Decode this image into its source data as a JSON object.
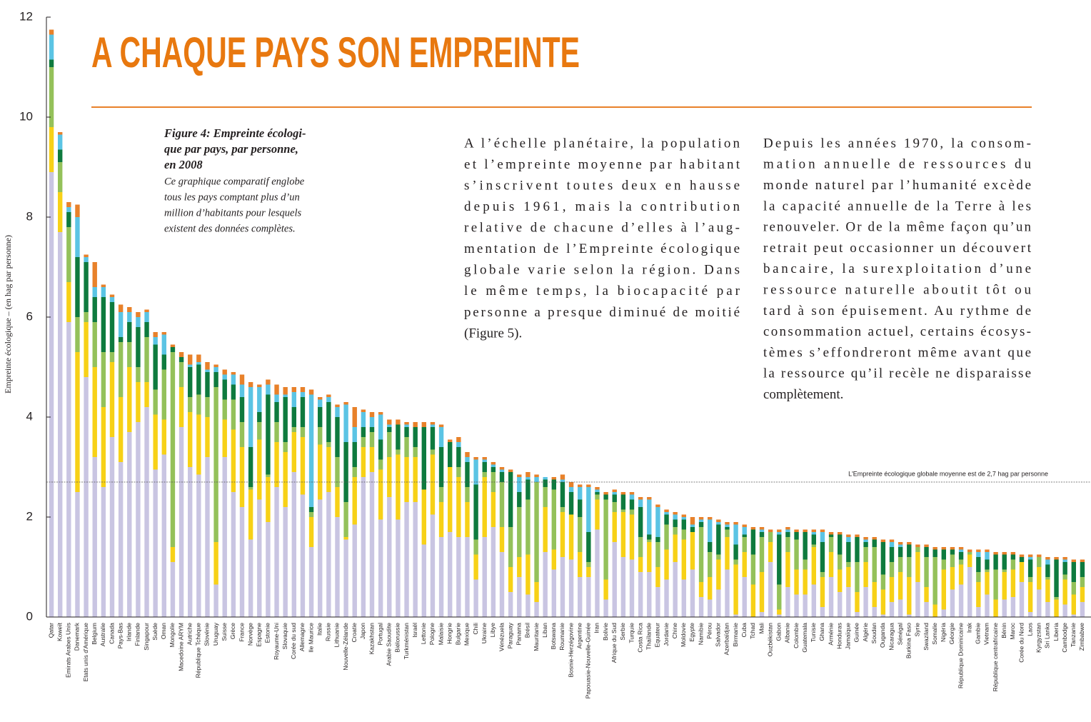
{
  "chart_data": {
    "type": "bar",
    "stacked": true,
    "title": "A CHAQUE PAYS SON EMPREINTE",
    "ylabel": "Empreinte écologique – (en hag par personne)",
    "ylim": [
      0,
      12
    ],
    "yticks": [
      0,
      2,
      4,
      6,
      8,
      10,
      12
    ],
    "grid": false,
    "reference_line": {
      "value": 2.7,
      "label": "L'Empreinte écologique globale moyenne est de 2,7 hag par personne"
    },
    "figure_title_lines": [
      "Figure 4: Empreinte écologi-",
      "que par pays, par personne,",
      "en 2008"
    ],
    "figure_text_lines": [
      "Ce graphique comparatif englobe",
      "tous les pays comptant plus d’un",
      "million d’habitants pour lesquels",
      "existent des données complètes."
    ],
    "paragraphs": [
      [
        "A l’échelle planétaire, la population",
        "et l’empreinte moyenne par habitant",
        "s’inscrivent toutes deux en hausse",
        "depuis 1961, mais la contribution",
        "relative de chacune d’elles à l’aug-",
        "mentation de l’Empreinte écologique",
        "globale varie selon la région. Dans",
        "le même temps, la biocapacité par",
        "personne a presque diminué de moitié",
        "(Figure 5)."
      ],
      [
        "Depuis les années 1970, la consom-",
        "mation annuelle de ressources du",
        "monde naturel par l’humanité excède",
        "la capacité annuelle de la Terre à les",
        "renouveler. Or de la même façon qu’un",
        "retrait peut occasionner un découvert",
        "bancaire, la surexploitation d’une",
        "ressource naturelle aboutit tôt ou",
        "tard à son épuisement. Au rythme de",
        "consommation actuel, certains écosys-",
        "tèmes s’effondreront même avant que",
        "la ressource qu’il recèle ne disparaisse",
        "complètement."
      ]
    ],
    "categories": [
      "Qatar",
      "Koweït",
      "Emirats Arabes Unis",
      "Danemark",
      "Etats unis d'Amérique",
      "Belgium",
      "Australie",
      "Canada",
      "Pays-Bas",
      "Irlande",
      "Finlande",
      "Singapour",
      "Suède",
      "Oman",
      "Mongolie",
      "Macedoine ARYM",
      "Autriche",
      "République Tchèque",
      "Slovénie",
      "Uruguay",
      "Suisse",
      "Grèce",
      "France",
      "Norvège",
      "Espagne",
      "Estonie",
      "Royaume-Uni",
      "Slovaquie",
      "Corée du sud",
      "Allemagne",
      "Ile Maurice",
      "Italie",
      "Russie",
      "Lithuanie",
      "Nouvelle-Zélande",
      "Croatie",
      "Japon",
      "Kazakhstan",
      "Portugal",
      "Arabie Saoudite",
      "Biélorussie",
      "Turkménistan",
      "Israël",
      "Lettonie",
      "Pologne",
      "Malaisie",
      "Hongrie",
      "Bulgarie",
      "Mexique",
      "Chili",
      "Ukraine",
      "Libye",
      "Vénézuela",
      "Paraguay",
      "Panama",
      "Brésil",
      "Mauritanie",
      "Liban",
      "Botswana",
      "Roumanie",
      "Bosnie-Herzégovine",
      "Argentine",
      "Papouasie-Nouvelle-Guinée",
      "Iran",
      "Bolivie",
      "Afrique du Sud",
      "Serbie",
      "Turquie",
      "Costa Rica",
      "Thaïlande",
      "Equateur",
      "Jordanie",
      "Chine",
      "Moldovie",
      "Egypte",
      "Namibie",
      "Pérou",
      "Salvador",
      "Azerbaïdjan",
      "Birmanie",
      "Cuba",
      "Tchad",
      "Mali",
      "Ouzbékistan",
      "Gabon",
      "Albanie",
      "Colombie",
      "Guatemala",
      "Tunisie",
      "Ghana",
      "Arménie",
      "Honduras",
      "Jamaïque",
      "Guinée",
      "Algérie",
      "Soudan",
      "Ouganda",
      "Nicaragua",
      "Sénégal",
      "Burkina Faso",
      "Syrie",
      "Swaziland",
      "Somalie",
      "Nigéria",
      "Géorgie",
      "République Dominicaine",
      "Irak",
      "Gambie",
      "Vietnam",
      "République centrafricaine",
      "Bénin",
      "Maroc",
      "Corée du Nord",
      "Laos",
      "Kyrgyzstan",
      "Sri Lanka",
      "Liberia",
      "Cambodge",
      "Tanzanie",
      "Zimbabwe"
    ],
    "series": [
      {
        "color": "#c9c5e2",
        "values": [
          8.9,
          7.7,
          5.9,
          2.5,
          4.8,
          3.2,
          2.6,
          3.6,
          3.1,
          3.7,
          3.9,
          4.2,
          2.95,
          3.25,
          1.1,
          3.8,
          3.0,
          2.85,
          3.2,
          0.65,
          3.2,
          2.5,
          2.2,
          1.55,
          2.35,
          1.9,
          2.6,
          2.2,
          2.9,
          2.45,
          1.4,
          2.35,
          2.5,
          2.0,
          1.55,
          1.85,
          2.8,
          2.9,
          1.95,
          2.4,
          1.95,
          2.3,
          2.3,
          1.45,
          2.05,
          1.6,
          1.7,
          1.6,
          1.6,
          0.75,
          1.6,
          1.8,
          1.3,
          0.5,
          0.8,
          0.45,
          0.3,
          1.3,
          0.95,
          1.2,
          1.15,
          0.8,
          0.8,
          1.75,
          0.35,
          1.5,
          1.2,
          1.15,
          0.9,
          0.9,
          0.6,
          0.75,
          1.1,
          0.75,
          0.95,
          0.4,
          0.35,
          0.55,
          0.95,
          0.05,
          0.8,
          0,
          0.1,
          1.1,
          0.05,
          0.6,
          0.45,
          0.45,
          0.65,
          0.2,
          0.8,
          0.5,
          0.6,
          0.1,
          0.6,
          0.2,
          0.05,
          0.3,
          0.35,
          0.05,
          0.7,
          0.3,
          0,
          0.15,
          0.55,
          0.65,
          1.0,
          0.2,
          0.45,
          0,
          0.35,
          0.4,
          0.7,
          0.1,
          0.55,
          0.3,
          0,
          0.25,
          0.05,
          0.3
        ]
      },
      {
        "color": "#f7d117",
        "values": [
          0.9,
          0.8,
          0.8,
          2.8,
          1.1,
          1.8,
          1.6,
          1.5,
          1.3,
          1.3,
          0.8,
          0.5,
          1.1,
          0.7,
          0.3,
          0.8,
          1.1,
          1.2,
          0.8,
          0.85,
          0.75,
          1.25,
          1.2,
          1.0,
          1.2,
          0.9,
          0.9,
          1.1,
          0.8,
          1.15,
          0.6,
          1.1,
          0.9,
          0.6,
          0.05,
          0.95,
          0.6,
          0.5,
          1.0,
          0.8,
          1.3,
          0.9,
          0.9,
          1.1,
          1.2,
          0.7,
          1.3,
          1.2,
          0.7,
          0.5,
          1.2,
          0.7,
          0.5,
          0.5,
          0.4,
          0.8,
          0.4,
          0.9,
          0.4,
          0.9,
          0.9,
          0.5,
          0.2,
          0.6,
          0.4,
          0.6,
          0.9,
          0.9,
          0.3,
          0.6,
          0.4,
          0.6,
          0.55,
          0.8,
          0.75,
          0.3,
          0.45,
          0.6,
          0.65,
          1.0,
          0.5,
          0.65,
          0.8,
          0.4,
          0.1,
          0.7,
          0.5,
          0.5,
          0.75,
          0.6,
          0.5,
          0.45,
          0.4,
          0.4,
          0.5,
          0.5,
          0.5,
          0.5,
          0.55,
          0.75,
          0.6,
          0.3,
          0.25,
          0.8,
          0.45,
          0.4,
          0.25,
          0.5,
          0.45,
          0.35,
          0.55,
          0.55,
          0.4,
          0.6,
          0.45,
          0.45,
          0.35,
          0.5,
          0.4,
          0.3
        ]
      },
      {
        "color": "#94c15a",
        "values": [
          1.2,
          0.6,
          1.1,
          0.7,
          0.2,
          0.9,
          1.1,
          0.2,
          1.1,
          0.5,
          0.3,
          0.9,
          0.5,
          1.0,
          3.9,
          0.5,
          0.3,
          0.4,
          0.4,
          3.1,
          0.4,
          0.6,
          0.5,
          0.05,
          0.35,
          0.05,
          0.4,
          0.2,
          0.1,
          0.2,
          0.1,
          0.35,
          0.1,
          0.6,
          0.7,
          0.2,
          0.2,
          0.3,
          0.2,
          0.5,
          0.1,
          0.4,
          0.2,
          0,
          0.1,
          0.3,
          0,
          0.2,
          0.3,
          0.3,
          0.1,
          0.4,
          0.9,
          0.8,
          1.0,
          1.1,
          2.0,
          0.4,
          1.2,
          0.1,
          0,
          0.7,
          0.1,
          0.1,
          1.6,
          0.2,
          0.05,
          0.1,
          0.4,
          0.05,
          0.5,
          0.5,
          0.15,
          0.2,
          0,
          1.1,
          0.5,
          0.1,
          0.15,
          0.1,
          0.3,
          0.6,
          0.7,
          0.2,
          0.5,
          0.3,
          0.6,
          0.2,
          0.05,
          0.1,
          0.3,
          0.3,
          0.1,
          0.6,
          0.3,
          0.7,
          0.3,
          0.3,
          0.3,
          0.4,
          0.1,
          0.6,
          0.95,
          0.2,
          0.25,
          0.1,
          0.05,
          0.2,
          0.05,
          0.6,
          0.05,
          0.2,
          0,
          0.1,
          0.2,
          0.05,
          0.05,
          0.1,
          0.25,
          0.2
        ]
      },
      {
        "color": "#0e7a3e",
        "values": [
          0.15,
          0.25,
          0.3,
          1.2,
          1.0,
          0.5,
          1.1,
          1.0,
          0.1,
          0.4,
          0.8,
          0.3,
          0.9,
          0.3,
          0.1,
          0.1,
          0.6,
          0.6,
          0.5,
          0.3,
          0.4,
          0.3,
          0.5,
          0.8,
          0.2,
          1.6,
          0.4,
          0.9,
          0.4,
          0.6,
          0.1,
          0.4,
          0.8,
          0.8,
          1.2,
          0.5,
          0.2,
          0.1,
          0.4,
          0.1,
          0.5,
          0.2,
          0.4,
          1.25,
          0.45,
          0.8,
          0.5,
          0.4,
          0.5,
          1.1,
          0.2,
          0.1,
          0.2,
          1.1,
          0.3,
          0.4,
          0,
          0.15,
          0.2,
          0.5,
          0.45,
          0.35,
          0.6,
          0.05,
          0.1,
          0.15,
          0.3,
          0.2,
          0.6,
          0.1,
          0.1,
          0.2,
          0.15,
          0.2,
          0.1,
          0.1,
          0.2,
          0.6,
          0.05,
          0.3,
          0.05,
          0.5,
          0.1,
          0,
          1.0,
          0.1,
          0.15,
          0.55,
          0.2,
          0.6,
          0.05,
          0.4,
          0.4,
          0.5,
          0.1,
          0.15,
          0.65,
          0.3,
          0.2,
          0.25,
          0,
          0.2,
          0.15,
          0.2,
          0.1,
          0.15,
          0,
          0.3,
          0.2,
          0.3,
          0.3,
          0.1,
          0.1,
          0.35,
          0,
          0.25,
          0.75,
          0.25,
          0.4,
          0.3
        ]
      },
      {
        "color": "#5bc4e4",
        "values": [
          0.5,
          0.3,
          0.1,
          0.8,
          0.1,
          0.2,
          0.2,
          0.1,
          0.5,
          0.2,
          0.2,
          0.2,
          0.15,
          0.4,
          0,
          0,
          0.05,
          0.05,
          0.05,
          0.1,
          0.1,
          0.2,
          0.25,
          1.2,
          0.5,
          0.2,
          0.15,
          0.05,
          0.3,
          0.1,
          2.25,
          0.15,
          0.1,
          0.2,
          0.75,
          0.3,
          0.3,
          0.2,
          0.5,
          0.05,
          0,
          0.05,
          0,
          0,
          0.05,
          0.4,
          0,
          0.1,
          0.1,
          0.5,
          0.05,
          0.05,
          0.05,
          0,
          0.3,
          0.05,
          0.1,
          0.05,
          0,
          0.05,
          0.1,
          0.25,
          0.9,
          0.05,
          0,
          0.05,
          0,
          0.1,
          0.15,
          0.7,
          0.6,
          0.05,
          0.1,
          0.05,
          0.05,
          0.05,
          0.45,
          0.05,
          0.05,
          0.4,
          0.15,
          0,
          0.05,
          0,
          0.05,
          0.05,
          0,
          0,
          0.05,
          0.2,
          0,
          0,
          0.1,
          0,
          0.05,
          0,
          0,
          0.1,
          0.05,
          0,
          0,
          0,
          0,
          0,
          0,
          0.05,
          0,
          0.1,
          0.15,
          0,
          0,
          0,
          0,
          0.05,
          0,
          0.1,
          0,
          0.05,
          0,
          0
        ]
      },
      {
        "color": "#e8812a",
        "values": [
          0.1,
          0.05,
          0.1,
          0.25,
          0.05,
          0.5,
          0.05,
          0.05,
          0.15,
          0.1,
          0.1,
          0.05,
          0.1,
          0.05,
          0.05,
          0.1,
          0.2,
          0.15,
          0.15,
          0.05,
          0.1,
          0.05,
          0.2,
          0.1,
          0.05,
          0.1,
          0.2,
          0.15,
          0.1,
          0.1,
          0.1,
          0.05,
          0.05,
          0.05,
          0.05,
          0.4,
          0.05,
          0.1,
          0.05,
          0.1,
          0.1,
          0.05,
          0.1,
          0.1,
          0.05,
          0.05,
          0.05,
          0.1,
          0.1,
          0.05,
          0.05,
          0.05,
          0.05,
          0.05,
          0.05,
          0.1,
          0.05,
          0,
          0.05,
          0.1,
          0.1,
          0.05,
          0.05,
          0.05,
          0.05,
          0.05,
          0.05,
          0.05,
          0.05,
          0.05,
          0.05,
          0.05,
          0.05,
          0.05,
          0.15,
          0.05,
          0.05,
          0.05,
          0.05,
          0.05,
          0.05,
          0.05,
          0.05,
          0.05,
          0.05,
          0.05,
          0.05,
          0.05,
          0.05,
          0.05,
          0.05,
          0.05,
          0.05,
          0.05,
          0.05,
          0.05,
          0.05,
          0.05,
          0.05,
          0.05,
          0.05,
          0.05,
          0.05,
          0.05,
          0.05,
          0.05,
          0.05,
          0.05,
          0.05,
          0.05,
          0.05,
          0.05,
          0.05,
          0.05,
          0.05,
          0.05,
          0.05,
          0.05,
          0.05,
          0.05
        ]
      }
    ]
  }
}
